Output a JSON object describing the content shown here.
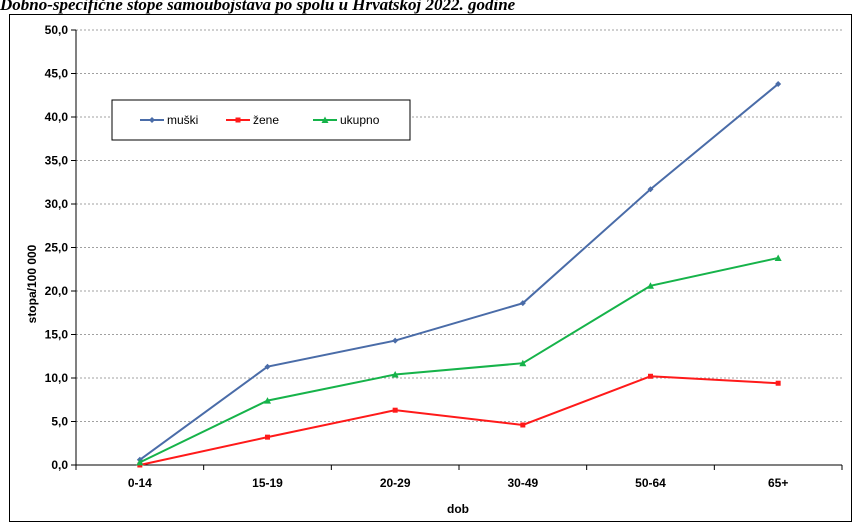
{
  "title": "Dobno-specifične stope samoubojstava po spolu u Hrvatskoj 2022. godine",
  "colors": {
    "muski": "#4a6ca8",
    "zene": "#ff1a1a",
    "ukupno": "#16b34a"
  },
  "chart_data": {
    "type": "line",
    "title": "Dobno-specifične stope samoubojstava po spolu u Hrvatskoj 2022. godine",
    "xlabel": "dob",
    "ylabel": "stopa/100 000",
    "categories": [
      "0-14",
      "15-19",
      "20-29",
      "30-49",
      "50-64",
      "65+"
    ],
    "ylim": [
      0,
      50
    ],
    "yticks": [
      "0,0",
      "5,0",
      "10,0",
      "15,0",
      "20,0",
      "25,0",
      "30,0",
      "35,0",
      "40,0",
      "45,0",
      "50,0"
    ],
    "grid": true,
    "legend_position": "top-left",
    "series": [
      {
        "name": "muški",
        "marker": "diamond",
        "values": [
          0.6,
          11.3,
          14.3,
          18.6,
          31.7,
          43.8
        ]
      },
      {
        "name": "žene",
        "marker": "square",
        "values": [
          0.0,
          3.2,
          6.3,
          4.6,
          10.2,
          9.4
        ]
      },
      {
        "name": "ukupno",
        "marker": "triangle",
        "values": [
          0.3,
          7.4,
          10.4,
          11.7,
          20.6,
          23.8
        ]
      }
    ]
  }
}
